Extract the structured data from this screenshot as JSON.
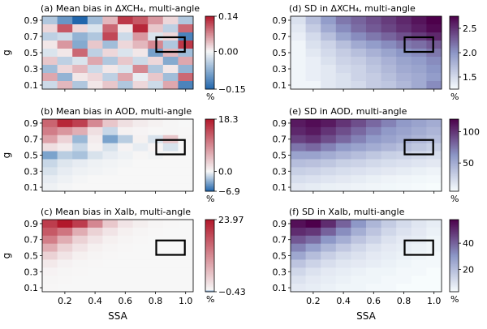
{
  "figure": {
    "x_label": "SSA",
    "y_label": "g",
    "x_ticks": [
      "0.2",
      "0.4",
      "0.6",
      "0.8",
      "1.0"
    ],
    "y_ticks": [
      "0.1",
      "0.3",
      "0.5",
      "0.7",
      "0.9"
    ],
    "colorbar_unit": "%"
  },
  "chart_data": [
    {
      "type": "heatmap",
      "panel": "a",
      "title": "(a) Mean bias in ΔXCH₄, multi-angle",
      "x": [
        0.1,
        0.2,
        0.3,
        0.4,
        0.5,
        0.6,
        0.7,
        0.8,
        0.9,
        1.0
      ],
      "y": [
        0.9,
        0.8,
        0.7,
        0.6,
        0.5,
        0.4,
        0.3,
        0.2,
        0.1
      ],
      "colormap": "diverging",
      "colors": {
        "low": "#2166ac",
        "mid": "#f7f7f7",
        "high": "#b2182b"
      },
      "vmin": -0.15,
      "vmid": 0.0,
      "vmax": 0.14,
      "colorbar_ticks": [
        {
          "value": 0.14,
          "label": "0.14"
        },
        {
          "value": 0.0,
          "label": "0.00"
        },
        {
          "value": -0.15,
          "label": "−0.15"
        }
      ],
      "colorbar_unit": "%",
      "z": [
        [
          -0.05,
          -0.1,
          -0.15,
          -0.06,
          0.04,
          0.12,
          0.1,
          0.06,
          0.02,
          -0.05
        ],
        [
          0.02,
          0.1,
          0.02,
          -0.02,
          0.09,
          0.01,
          0.13,
          0.03,
          -0.04,
          0.09
        ],
        [
          -0.04,
          -0.03,
          -0.07,
          -0.05,
          0.11,
          -0.03,
          0.06,
          -0.02,
          0.02,
          -0.12
        ],
        [
          0.01,
          0.06,
          -0.08,
          0.03,
          -0.06,
          0.02,
          0.04,
          0.07,
          -0.05,
          0.12
        ],
        [
          -0.02,
          0.01,
          0.09,
          -0.04,
          0.02,
          -0.02,
          0.01,
          -0.09,
          0.04,
          -0.06
        ],
        [
          0.03,
          -0.04,
          -0.02,
          0.05,
          -0.05,
          0.03,
          -0.03,
          0.02,
          -0.08,
          0.05
        ],
        [
          -0.06,
          0.02,
          0.04,
          -0.03,
          0.01,
          -0.02,
          0.07,
          -0.05,
          0.01,
          -0.07
        ],
        [
          0.05,
          -0.07,
          0.01,
          0.02,
          -0.04,
          0.05,
          -0.01,
          0.03,
          -0.06,
          0.09
        ],
        [
          -0.03,
          0.04,
          -0.05,
          0.01,
          0.03,
          -0.05,
          0.02,
          -0.03,
          0.05,
          -0.12
        ]
      ]
    },
    {
      "type": "heatmap",
      "panel": "b",
      "title": "(b) Mean bias in AOD, multi-angle",
      "x": [
        0.1,
        0.2,
        0.3,
        0.4,
        0.5,
        0.6,
        0.7,
        0.8,
        0.9,
        1.0
      ],
      "y": [
        0.9,
        0.8,
        0.7,
        0.6,
        0.5,
        0.4,
        0.3,
        0.2,
        0.1
      ],
      "colormap": "diverging",
      "colors": {
        "low": "#2166ac",
        "mid": "#f7f7f7",
        "high": "#b2182b"
      },
      "vmin": -6.9,
      "vmid": 0.0,
      "vmax": 18.3,
      "colorbar_ticks": [
        {
          "value": 18.3,
          "label": "18.3"
        },
        {
          "value": 0.0,
          "label": "0.0"
        },
        {
          "value": -6.9,
          "label": "−6.9"
        }
      ],
      "colorbar_unit": "%",
      "z": [
        [
          12,
          17,
          15,
          9,
          4,
          2,
          1,
          0.5,
          0.2,
          0
        ],
        [
          10,
          8,
          6,
          2,
          -1.5,
          0.5,
          0.3,
          0.1,
          0.2,
          0.1
        ],
        [
          7,
          3,
          -3,
          1,
          -4,
          -2,
          0.5,
          -1,
          4,
          0.2
        ],
        [
          2,
          1,
          -1.5,
          0.5,
          -1,
          0.4,
          -0.5,
          0.3,
          -1,
          0.1
        ],
        [
          -4,
          -2,
          -2.5,
          -1,
          -0.5,
          -0.3,
          0.2,
          -0.2,
          0.1,
          0
        ],
        [
          -1.5,
          -0.8,
          -0.5,
          -0.3,
          -0.2,
          -0.1,
          0,
          0,
          0,
          0
        ],
        [
          -1,
          -0.5,
          -0.3,
          -0.2,
          -0.1,
          0,
          0,
          0,
          0,
          0
        ],
        [
          -0.5,
          -0.3,
          -0.1,
          0,
          0,
          0,
          0,
          0,
          0,
          0
        ],
        [
          -0.3,
          -0.1,
          0,
          0,
          0,
          0,
          0,
          0,
          0,
          0
        ]
      ]
    },
    {
      "type": "heatmap",
      "panel": "c",
      "title": "(c) Mean bias in Xalb, multi-angle",
      "x": [
        0.1,
        0.2,
        0.3,
        0.4,
        0.5,
        0.6,
        0.7,
        0.8,
        0.9,
        1.0
      ],
      "y": [
        0.9,
        0.8,
        0.7,
        0.6,
        0.5,
        0.4,
        0.3,
        0.2,
        0.1
      ],
      "colormap": "diverging",
      "colors": {
        "low": "#2166ac",
        "mid": "#f7f7f7",
        "high": "#b2182b"
      },
      "vmin": -0.43,
      "vmid": 0.0,
      "vmax": 23.97,
      "colorbar_ticks": [
        {
          "value": 23.97,
          "label": "23.97"
        },
        {
          "value": -0.43,
          "label": "−0.43"
        }
      ],
      "colorbar_unit": "%",
      "z": [
        [
          20,
          24,
          20,
          12,
          5,
          2,
          1,
          0.3,
          0.1,
          0
        ],
        [
          17,
          14,
          8,
          4,
          2,
          0.8,
          0.3,
          0.1,
          0,
          0
        ],
        [
          13,
          8,
          4,
          2,
          0.8,
          0.3,
          0.1,
          0,
          0,
          0
        ],
        [
          8,
          4,
          2,
          0.8,
          0.3,
          0.1,
          0,
          0,
          0,
          0
        ],
        [
          4,
          2,
          0.8,
          0.3,
          0.1,
          0,
          0,
          0,
          0,
          0
        ],
        [
          1.5,
          0.6,
          0.2,
          0.1,
          0,
          0,
          0,
          0,
          0,
          0
        ],
        [
          0.5,
          0.2,
          0.1,
          0,
          0,
          0,
          0,
          0,
          0,
          0
        ],
        [
          0.2,
          0.1,
          0,
          0,
          0,
          0,
          0,
          0,
          0,
          0
        ],
        [
          0.1,
          0,
          0,
          0,
          0,
          0,
          0,
          0,
          0,
          0
        ]
      ]
    },
    {
      "type": "heatmap",
      "panel": "d",
      "title": "(d) SD in ΔXCH₄, multi-angle",
      "x": [
        0.1,
        0.2,
        0.3,
        0.4,
        0.5,
        0.6,
        0.7,
        0.8,
        0.9,
        1.0
      ],
      "y": [
        0.9,
        0.8,
        0.7,
        0.6,
        0.5,
        0.4,
        0.3,
        0.2,
        0.1
      ],
      "colormap": "sequential",
      "colors": {
        "low": "#f7fcfd",
        "mid": "#8c96c6",
        "high": "#4d004b"
      },
      "vmin": 1.25,
      "vmax": 2.75,
      "colorbar_ticks": [
        {
          "value": 2.5,
          "label": "2.5"
        },
        {
          "value": 2.0,
          "label": "2.0"
        },
        {
          "value": 1.5,
          "label": "1.5"
        }
      ],
      "colorbar_unit": "%",
      "z": [
        [
          1.45,
          1.7,
          1.95,
          2.15,
          2.25,
          2.35,
          2.45,
          2.55,
          2.65,
          2.75
        ],
        [
          1.4,
          1.6,
          1.85,
          2.05,
          2.2,
          2.3,
          2.4,
          2.5,
          2.6,
          2.7
        ],
        [
          1.35,
          1.5,
          1.7,
          1.9,
          2.05,
          2.15,
          2.25,
          2.35,
          2.45,
          2.55
        ],
        [
          1.3,
          1.45,
          1.55,
          1.7,
          1.85,
          1.95,
          2.05,
          2.15,
          2.2,
          2.3
        ],
        [
          1.3,
          1.4,
          1.5,
          1.6,
          1.7,
          1.8,
          1.9,
          2.0,
          2.05,
          2.15
        ],
        [
          1.3,
          1.35,
          1.45,
          1.55,
          1.6,
          1.7,
          1.8,
          1.9,
          1.95,
          2.05
        ],
        [
          1.3,
          1.35,
          1.4,
          1.5,
          1.55,
          1.65,
          1.75,
          1.85,
          1.9,
          2.0
        ],
        [
          1.3,
          1.35,
          1.4,
          1.45,
          1.55,
          1.6,
          1.7,
          1.8,
          1.85,
          1.95
        ],
        [
          1.3,
          1.3,
          1.4,
          1.45,
          1.5,
          1.6,
          1.65,
          1.75,
          1.85,
          2.05
        ]
      ]
    },
    {
      "type": "heatmap",
      "panel": "e",
      "title": "(e) SD in AOD, multi-angle",
      "x": [
        0.1,
        0.2,
        0.3,
        0.4,
        0.5,
        0.6,
        0.7,
        0.8,
        0.9,
        1.0
      ],
      "y": [
        0.9,
        0.8,
        0.7,
        0.6,
        0.5,
        0.4,
        0.3,
        0.2,
        0.1
      ],
      "colormap": "sequential",
      "colors": {
        "low": "#f7fcfd",
        "mid": "#8c96c6",
        "high": "#4d004b"
      },
      "vmin": 5,
      "vmax": 120,
      "colorbar_ticks": [
        {
          "value": 100,
          "label": "100"
        },
        {
          "value": 50,
          "label": "50"
        }
      ],
      "colorbar_unit": "%",
      "z": [
        [
          110,
          115,
          110,
          100,
          90,
          80,
          70,
          60,
          55,
          50
        ],
        [
          105,
          110,
          100,
          90,
          80,
          70,
          60,
          55,
          50,
          45
        ],
        [
          95,
          100,
          90,
          80,
          70,
          60,
          55,
          50,
          45,
          40
        ],
        [
          75,
          80,
          70,
          60,
          55,
          50,
          45,
          40,
          35,
          30
        ],
        [
          55,
          55,
          50,
          45,
          40,
          35,
          30,
          28,
          25,
          22
        ],
        [
          40,
          38,
          35,
          30,
          28,
          25,
          22,
          20,
          18,
          16
        ],
        [
          30,
          28,
          25,
          22,
          20,
          18,
          16,
          14,
          12,
          10
        ],
        [
          22,
          20,
          18,
          16,
          14,
          12,
          10,
          9,
          8,
          7
        ],
        [
          16,
          14,
          12,
          11,
          10,
          9,
          8,
          7,
          6,
          5
        ]
      ]
    },
    {
      "type": "heatmap",
      "panel": "f",
      "title": "(f) SD in Xalb, multi-angle",
      "x": [
        0.1,
        0.2,
        0.3,
        0.4,
        0.5,
        0.6,
        0.7,
        0.8,
        0.9,
        1.0
      ],
      "y": [
        0.9,
        0.8,
        0.7,
        0.6,
        0.5,
        0.4,
        0.3,
        0.2,
        0.1
      ],
      "colormap": "sequential",
      "colors": {
        "low": "#f7fcfd",
        "mid": "#8c96c6",
        "high": "#4d004b"
      },
      "vmin": 3,
      "vmax": 58,
      "colorbar_ticks": [
        {
          "value": 40,
          "label": "40"
        },
        {
          "value": 20,
          "label": "20"
        }
      ],
      "colorbar_unit": "%",
      "z": [
        [
          55,
          58,
          50,
          40,
          30,
          22,
          16,
          12,
          9,
          7
        ],
        [
          50,
          48,
          40,
          32,
          24,
          18,
          13,
          10,
          8,
          6
        ],
        [
          42,
          38,
          30,
          24,
          18,
          14,
          10,
          8,
          7,
          5
        ],
        [
          34,
          28,
          22,
          17,
          13,
          10,
          8,
          7,
          6,
          5
        ],
        [
          26,
          20,
          15,
          12,
          10,
          8,
          7,
          6,
          5,
          4
        ],
        [
          18,
          14,
          11,
          9,
          8,
          7,
          6,
          5,
          4,
          4
        ],
        [
          13,
          10,
          8,
          7,
          6,
          5,
          5,
          4,
          4,
          3
        ],
        [
          10,
          8,
          7,
          6,
          5,
          5,
          4,
          4,
          3,
          3
        ],
        [
          8,
          7,
          6,
          5,
          5,
          4,
          4,
          3,
          3,
          3
        ]
      ]
    }
  ]
}
